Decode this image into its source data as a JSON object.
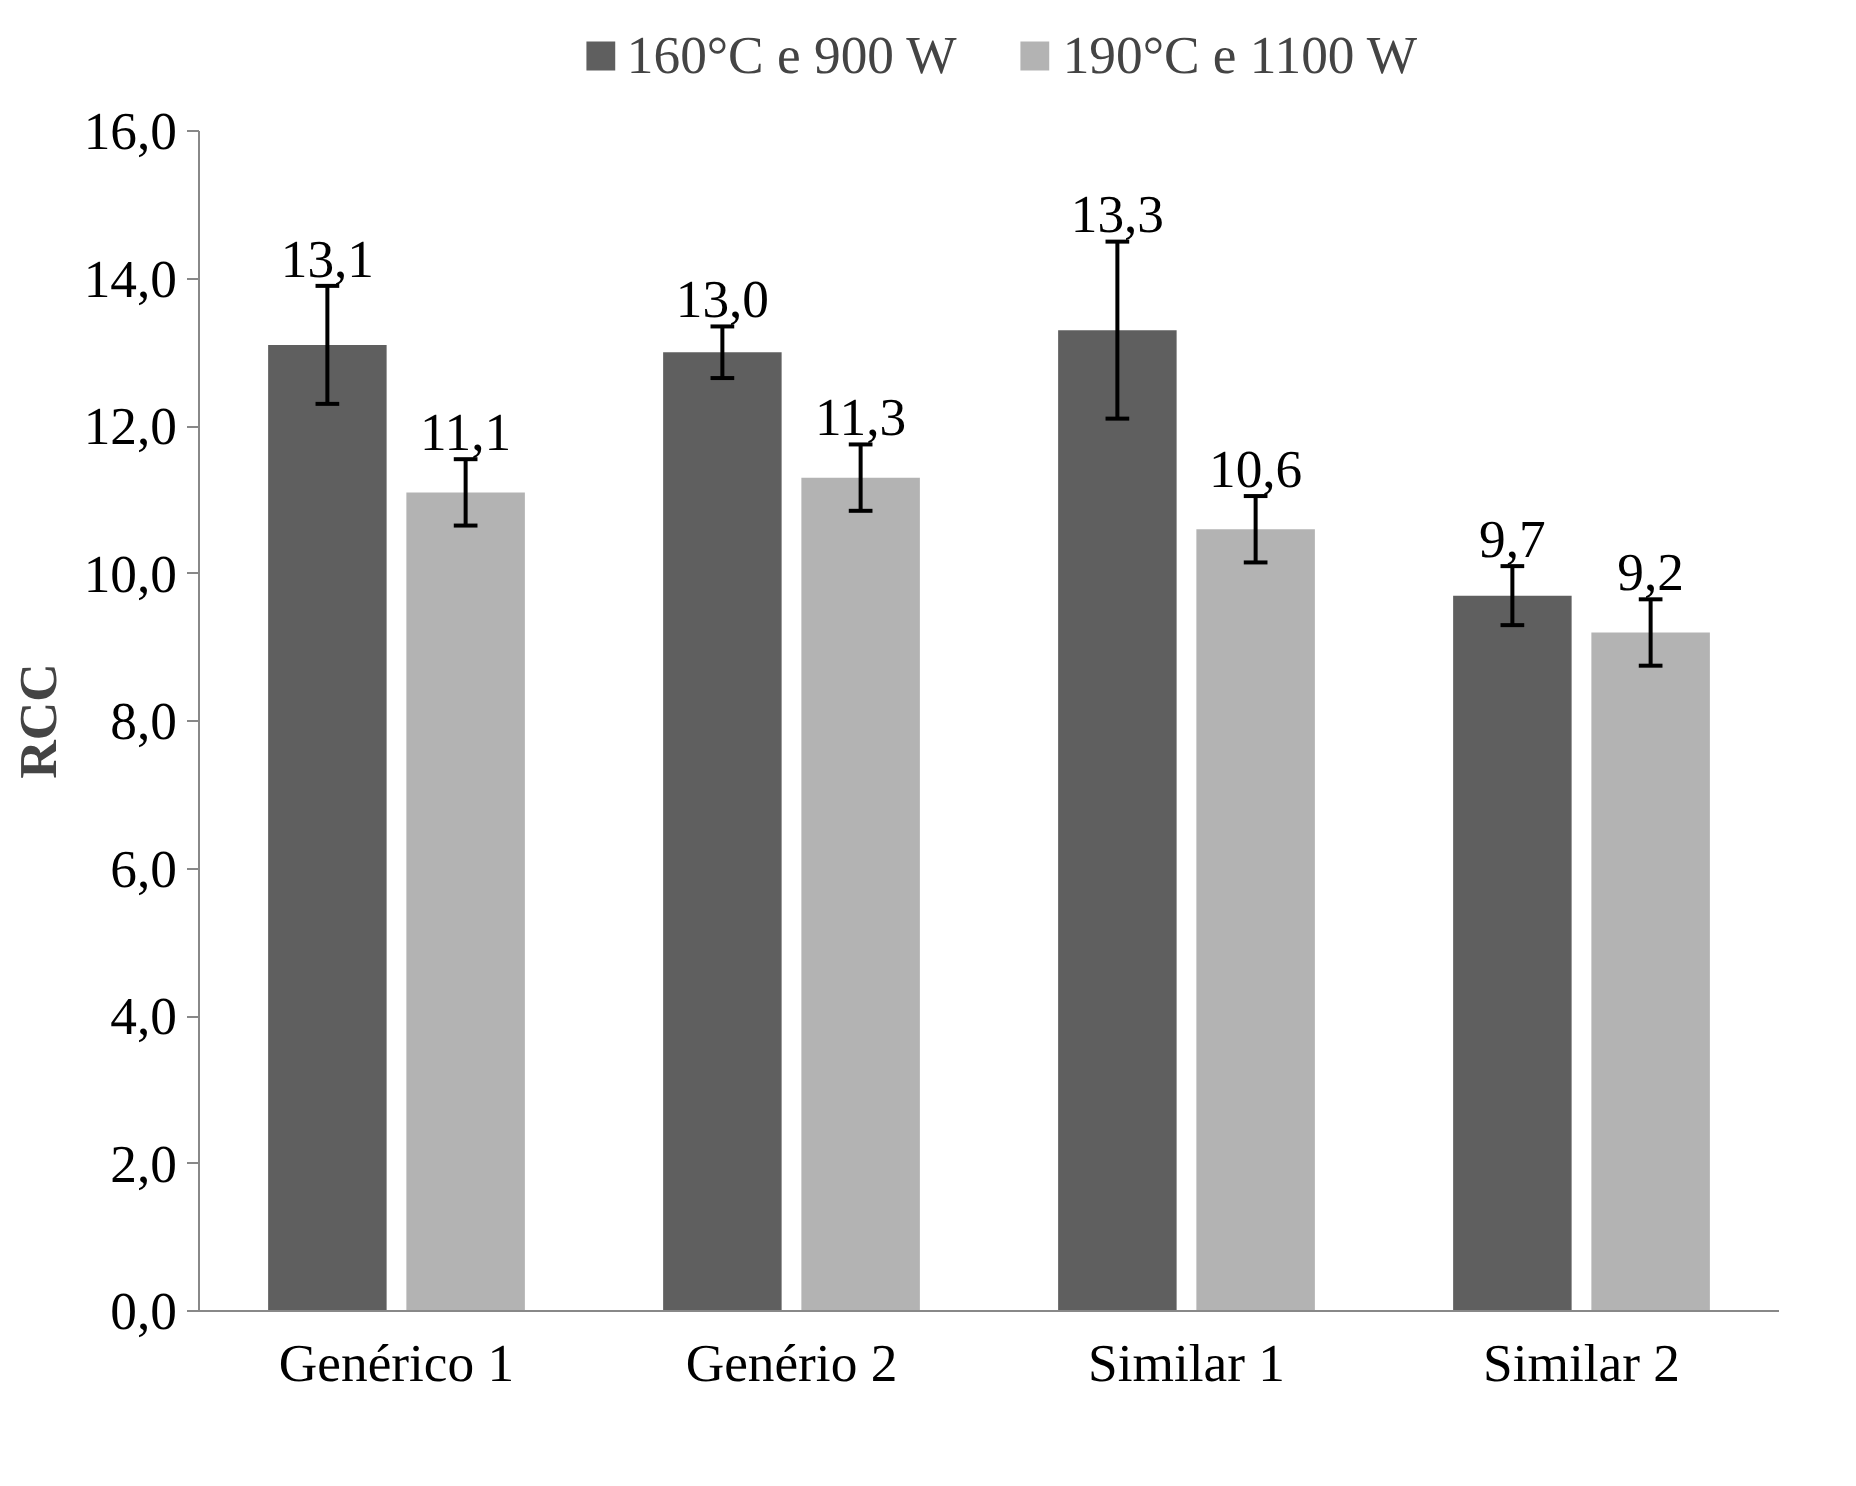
{
  "chart_data": {
    "type": "bar",
    "ylabel": "RCC",
    "categories": [
      "Genérico 1",
      "Genério 2",
      "Similar 1",
      "Similar 2"
    ],
    "series": [
      {
        "name": "160°C e 900 W",
        "color": "#5f5f5f",
        "values": [
          13.1,
          13.0,
          13.3,
          9.7
        ],
        "errors": [
          0.8,
          0.35,
          1.2,
          0.4
        ],
        "value_labels": [
          "13,1",
          "13,0",
          "13,3",
          "9,7"
        ]
      },
      {
        "name": "190°C e 1100 W",
        "color": "#b3b3b3",
        "values": [
          11.1,
          11.3,
          10.6,
          9.2
        ],
        "errors": [
          0.45,
          0.45,
          0.45,
          0.45
        ],
        "value_labels": [
          "11,1",
          "11,3",
          "10,6",
          "9,2"
        ]
      }
    ],
    "ylim": [
      0,
      16
    ],
    "yticks": [
      {
        "value": 0,
        "label": "0,0"
      },
      {
        "value": 2,
        "label": "2,0"
      },
      {
        "value": 4,
        "label": "4,0"
      },
      {
        "value": 6,
        "label": "6,0"
      },
      {
        "value": 8,
        "label": "8,0"
      },
      {
        "value": 10,
        "label": "10,0"
      },
      {
        "value": 12,
        "label": "12,0"
      },
      {
        "value": 14,
        "label": "14,0"
      },
      {
        "value": 16,
        "label": "16,0"
      }
    ],
    "grid": false,
    "legend": "top"
  }
}
